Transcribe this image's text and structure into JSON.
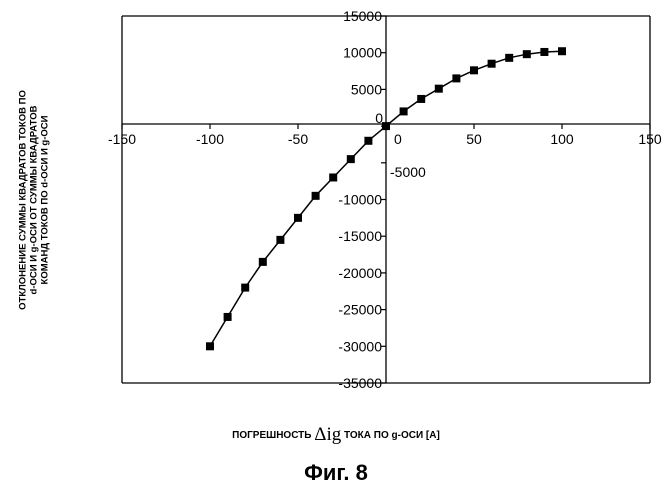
{
  "chart_data": {
    "type": "line",
    "marker": "square",
    "x": [
      -100,
      -90,
      -80,
      -70,
      -60,
      -50,
      -40,
      -30,
      -20,
      -10,
      0,
      10,
      20,
      30,
      40,
      50,
      60,
      70,
      80,
      90,
      100
    ],
    "y": [
      -30000,
      -26000,
      -22000,
      -18500,
      -15500,
      -12500,
      -9500,
      -7000,
      -4500,
      -2000,
      0,
      2000,
      3700,
      5100,
      6500,
      7600,
      8500,
      9300,
      9800,
      10100,
      10200
    ],
    "xlim": [
      -150,
      150
    ],
    "ylim": [
      -35000,
      15000
    ],
    "xticks": [
      -150,
      -100,
      -50,
      0,
      50,
      100,
      150
    ],
    "yticks": [
      15000,
      10000,
      5000,
      0,
      -5000,
      -10000,
      -15000,
      -20000,
      -25000,
      -30000,
      -35000
    ],
    "x_tick_labels": [
      "-150",
      "-100",
      "-50",
      "0",
      "50",
      "100",
      "150"
    ],
    "y_tick_labels": [
      "15000",
      "10000",
      "5000",
      "0",
      "-5000",
      "-10000",
      "-15000",
      "-20000",
      "-25000",
      "-30000",
      "-35000"
    ],
    "grid": false,
    "xlabel_prefix": "ПОГРЕШНОСТЬ",
    "xlabel_symbol": "Δig",
    "xlabel_suffix": "ТОКА ПО g-ОСИ [A]",
    "ylabel_lines": [
      "ОТКЛОНЕНИЕ СУММЫ КВАДРАТОВ ТОКОВ ПО",
      "d-ОСИ И g-ОСИ ОТ СУММЫ КВАДРАТОВ",
      "КОМАНД ТОКОВ ПО d-ОСИ И g-ОСИ"
    ]
  },
  "caption": "Фиг. 8"
}
